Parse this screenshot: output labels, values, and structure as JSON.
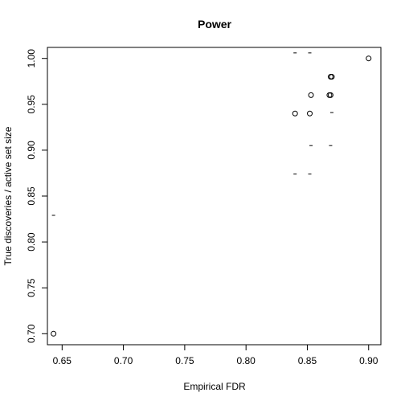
{
  "chart_data": {
    "type": "scatter",
    "title": "Power",
    "xlabel": "Empirical FDR",
    "ylabel": "True discoveries / active set size",
    "xlim": [
      0.638,
      0.91
    ],
    "ylim": [
      0.688,
      1.012
    ],
    "xticks": [
      0.65,
      0.7,
      0.75,
      0.8,
      0.85,
      0.9
    ],
    "xtick_labels": [
      "0.65",
      "0.70",
      "0.75",
      "0.80",
      "0.85",
      "0.90"
    ],
    "yticks": [
      0.7,
      0.75,
      0.8,
      0.85,
      0.9,
      0.95,
      1.0
    ],
    "ytick_labels": [
      "0.70",
      "0.75",
      "0.80",
      "0.85",
      "0.90",
      "0.95",
      "1.00"
    ],
    "grid": false,
    "legend": "none",
    "marker_color": "#000000",
    "points": [
      {
        "x": 0.643,
        "y": 0.7
      },
      {
        "x": 0.84,
        "y": 0.94
      },
      {
        "x": 0.852,
        "y": 0.94
      },
      {
        "x": 0.853,
        "y": 0.96
      },
      {
        "x": 0.868,
        "y": 0.96
      },
      {
        "x": 0.869,
        "y": 0.96
      },
      {
        "x": 0.869,
        "y": 0.98
      },
      {
        "x": 0.87,
        "y": 0.98
      },
      {
        "x": 0.9,
        "y": 1.0
      }
    ],
    "dash_marks": [
      {
        "x": 0.643,
        "y": 0.829
      },
      {
        "x": 0.84,
        "y": 1.006
      },
      {
        "x": 0.852,
        "y": 1.006
      },
      {
        "x": 0.84,
        "y": 0.874
      },
      {
        "x": 0.852,
        "y": 0.874
      },
      {
        "x": 0.853,
        "y": 0.905
      },
      {
        "x": 0.869,
        "y": 0.905
      },
      {
        "x": 0.87,
        "y": 0.941
      }
    ]
  }
}
